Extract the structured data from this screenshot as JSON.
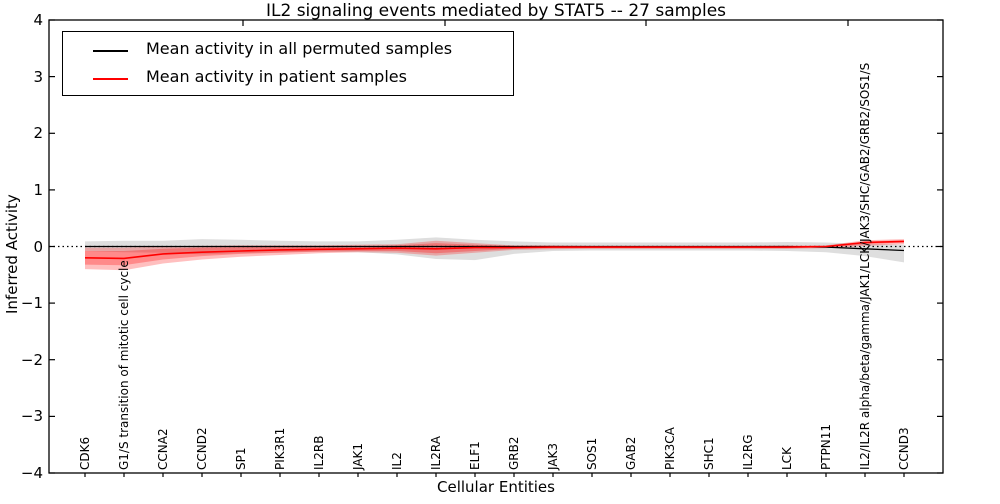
{
  "title": "IL2 signaling events mediated by STAT5 -- 27 samples",
  "axes": {
    "x_label": "Cellular Entities",
    "y_label": "Inferred Activity",
    "y_ticks": [
      "4",
      "3",
      "2",
      "1",
      "0",
      "−1",
      "−2",
      "−3",
      "−4"
    ],
    "y_tick_values": [
      4,
      3,
      2,
      1,
      0,
      -1,
      -2,
      -3,
      -4
    ]
  },
  "legend": {
    "items": [
      {
        "label": "Mean activity in all permuted samples",
        "color": "#000000"
      },
      {
        "label": "Mean activity in patient samples",
        "color": "#ff0000"
      }
    ]
  },
  "colors": {
    "permuted_line": "#000000",
    "patient_line": "#ff0000",
    "zero_line": "#000000"
  },
  "chart_data": {
    "type": "line",
    "title": "IL2 signaling events mediated by STAT5 -- 27 samples",
    "xlabel": "Cellular Entities",
    "ylabel": "Inferred Activity",
    "ylim": [
      -4,
      4
    ],
    "reference_line_y": 0,
    "grid": false,
    "legend_position": "upper left",
    "categories": [
      "CDK6",
      "G1/S transition of mitotic cell cycle",
      "CCNA2",
      "CCND2",
      "SP1",
      "PIK3R1",
      "IL2RB",
      "JAK1",
      "IL2",
      "IL2RA",
      "ELF1",
      "GRB2",
      "JAK3",
      "SOS1",
      "GAB2",
      "PIK3CA",
      "SHC1",
      "IL2RG",
      "LCK",
      "PTPN11",
      "IL2/IL2R alpha/beta/gamma/JAK1/LCK/JAK3/SHC/GAB2/GRB2/SOS1/S",
      "CCND3"
    ],
    "series": [
      {
        "name": "Mean activity in all permuted samples",
        "color": "#000000",
        "values": [
          0.0,
          0.0,
          0.0,
          0.0,
          0.0,
          0.0,
          0.0,
          0.0,
          0.0,
          0.0,
          0.0,
          0.0,
          0.0,
          0.0,
          0.0,
          0.0,
          0.0,
          0.0,
          0.0,
          -0.01,
          -0.04,
          -0.07
        ],
        "band_upper": [
          0.09,
          0.1,
          0.1,
          0.13,
          0.12,
          0.1,
          0.09,
          0.09,
          0.12,
          0.16,
          0.12,
          0.09,
          0.07,
          0.07,
          0.07,
          0.07,
          0.07,
          0.07,
          0.08,
          0.07,
          0.05,
          0.03
        ],
        "band_lower": [
          -0.08,
          -0.1,
          -0.11,
          -0.14,
          -0.12,
          -0.1,
          -0.09,
          -0.1,
          -0.14,
          -0.22,
          -0.24,
          -0.13,
          -0.08,
          -0.07,
          -0.07,
          -0.07,
          -0.07,
          -0.07,
          -0.08,
          -0.1,
          -0.17,
          -0.28
        ]
      },
      {
        "name": "Mean activity in patient samples",
        "color": "#ff0000",
        "values": [
          -0.2,
          -0.21,
          -0.13,
          -0.1,
          -0.08,
          -0.06,
          -0.05,
          -0.04,
          -0.03,
          -0.04,
          -0.02,
          -0.02,
          -0.01,
          -0.01,
          -0.01,
          -0.01,
          -0.01,
          -0.01,
          -0.01,
          0.0,
          0.07,
          0.09
        ],
        "band_upper": [
          -0.02,
          -0.02,
          0.0,
          0.01,
          0.02,
          0.02,
          0.02,
          0.03,
          0.04,
          0.1,
          0.06,
          0.02,
          0.02,
          0.01,
          0.01,
          0.01,
          0.01,
          0.01,
          0.02,
          0.02,
          0.11,
          0.13
        ],
        "band_lower": [
          -0.4,
          -0.42,
          -0.3,
          -0.23,
          -0.18,
          -0.15,
          -0.12,
          -0.1,
          -0.11,
          -0.16,
          -0.11,
          -0.06,
          -0.05,
          -0.04,
          -0.04,
          -0.04,
          -0.04,
          -0.04,
          -0.04,
          -0.03,
          0.01,
          0.04
        ],
        "inner_band_upper": [
          -0.08,
          -0.08,
          -0.04,
          -0.02,
          -0.01,
          0.0,
          0.0,
          0.0,
          0.02,
          0.06,
          0.03,
          0.01,
          0.01,
          0.0,
          0.0,
          0.0,
          0.0,
          0.0,
          0.0,
          0.01,
          0.09,
          0.11
        ],
        "inner_band_lower": [
          -0.32,
          -0.33,
          -0.23,
          -0.17,
          -0.13,
          -0.11,
          -0.09,
          -0.08,
          -0.08,
          -0.12,
          -0.08,
          -0.04,
          -0.03,
          -0.03,
          -0.03,
          -0.03,
          -0.03,
          -0.03,
          -0.03,
          -0.02,
          0.04,
          0.07
        ]
      }
    ]
  }
}
